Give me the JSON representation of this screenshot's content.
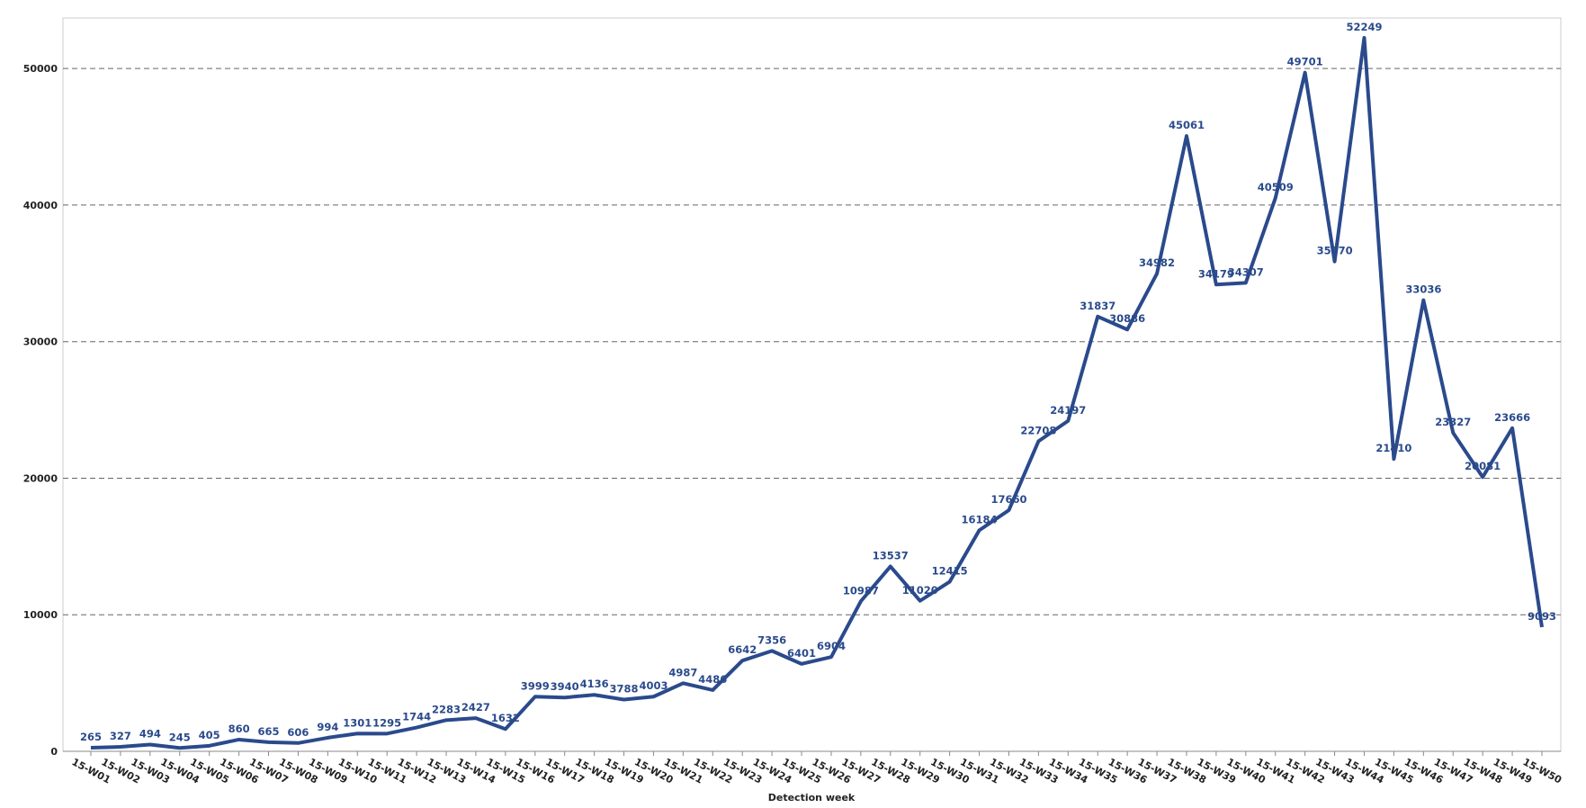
{
  "chart_data": {
    "type": "line",
    "x_label": "Detection week",
    "categories": [
      "15-W01",
      "15-W02",
      "15-W03",
      "15-W04",
      "15-W05",
      "15-W06",
      "15-W07",
      "15-W08",
      "15-W09",
      "15-W10",
      "15-W11",
      "15-W12",
      "15-W13",
      "15-W14",
      "15-W15",
      "15-W16",
      "15-W17",
      "15-W18",
      "15-W19",
      "15-W20",
      "15-W21",
      "15-W22",
      "15-W23",
      "15-W24",
      "15-W25",
      "15-W26",
      "15-W27",
      "15-W28",
      "15-W29",
      "15-W30",
      "15-W31",
      "15-W32",
      "15-W33",
      "15-W34",
      "15-W35",
      "15-W36",
      "15-W37",
      "15-W38",
      "15-W39",
      "15-W40",
      "15-W41",
      "15-W42",
      "15-W43",
      "15-W44",
      "15-W45",
      "15-W46",
      "15-W47",
      "15-W48",
      "15-W49",
      "15-W50"
    ],
    "series": [
      {
        "color": "#2a4a8c",
        "values": [
          265,
          327,
          494,
          245,
          405,
          860,
          665,
          606,
          994,
          1301,
          1295,
          1744,
          2283,
          2427,
          1632,
          3999,
          3940,
          4136,
          3788,
          4003,
          4987,
          4486,
          6642,
          7356,
          6401,
          6904,
          10987,
          13537,
          11020,
          12415,
          16184,
          17660,
          22708,
          24197,
          31837,
          30886,
          34982,
          45061,
          34179,
          34307,
          40509,
          49701,
          35870,
          52249,
          21410,
          33036,
          23327,
          20081,
          23666,
          9093
        ]
      }
    ],
    "ylim": [
      0,
      53700
    ],
    "yticks": [
      0,
      10000,
      20000,
      30000,
      40000,
      50000
    ],
    "grid": true
  }
}
